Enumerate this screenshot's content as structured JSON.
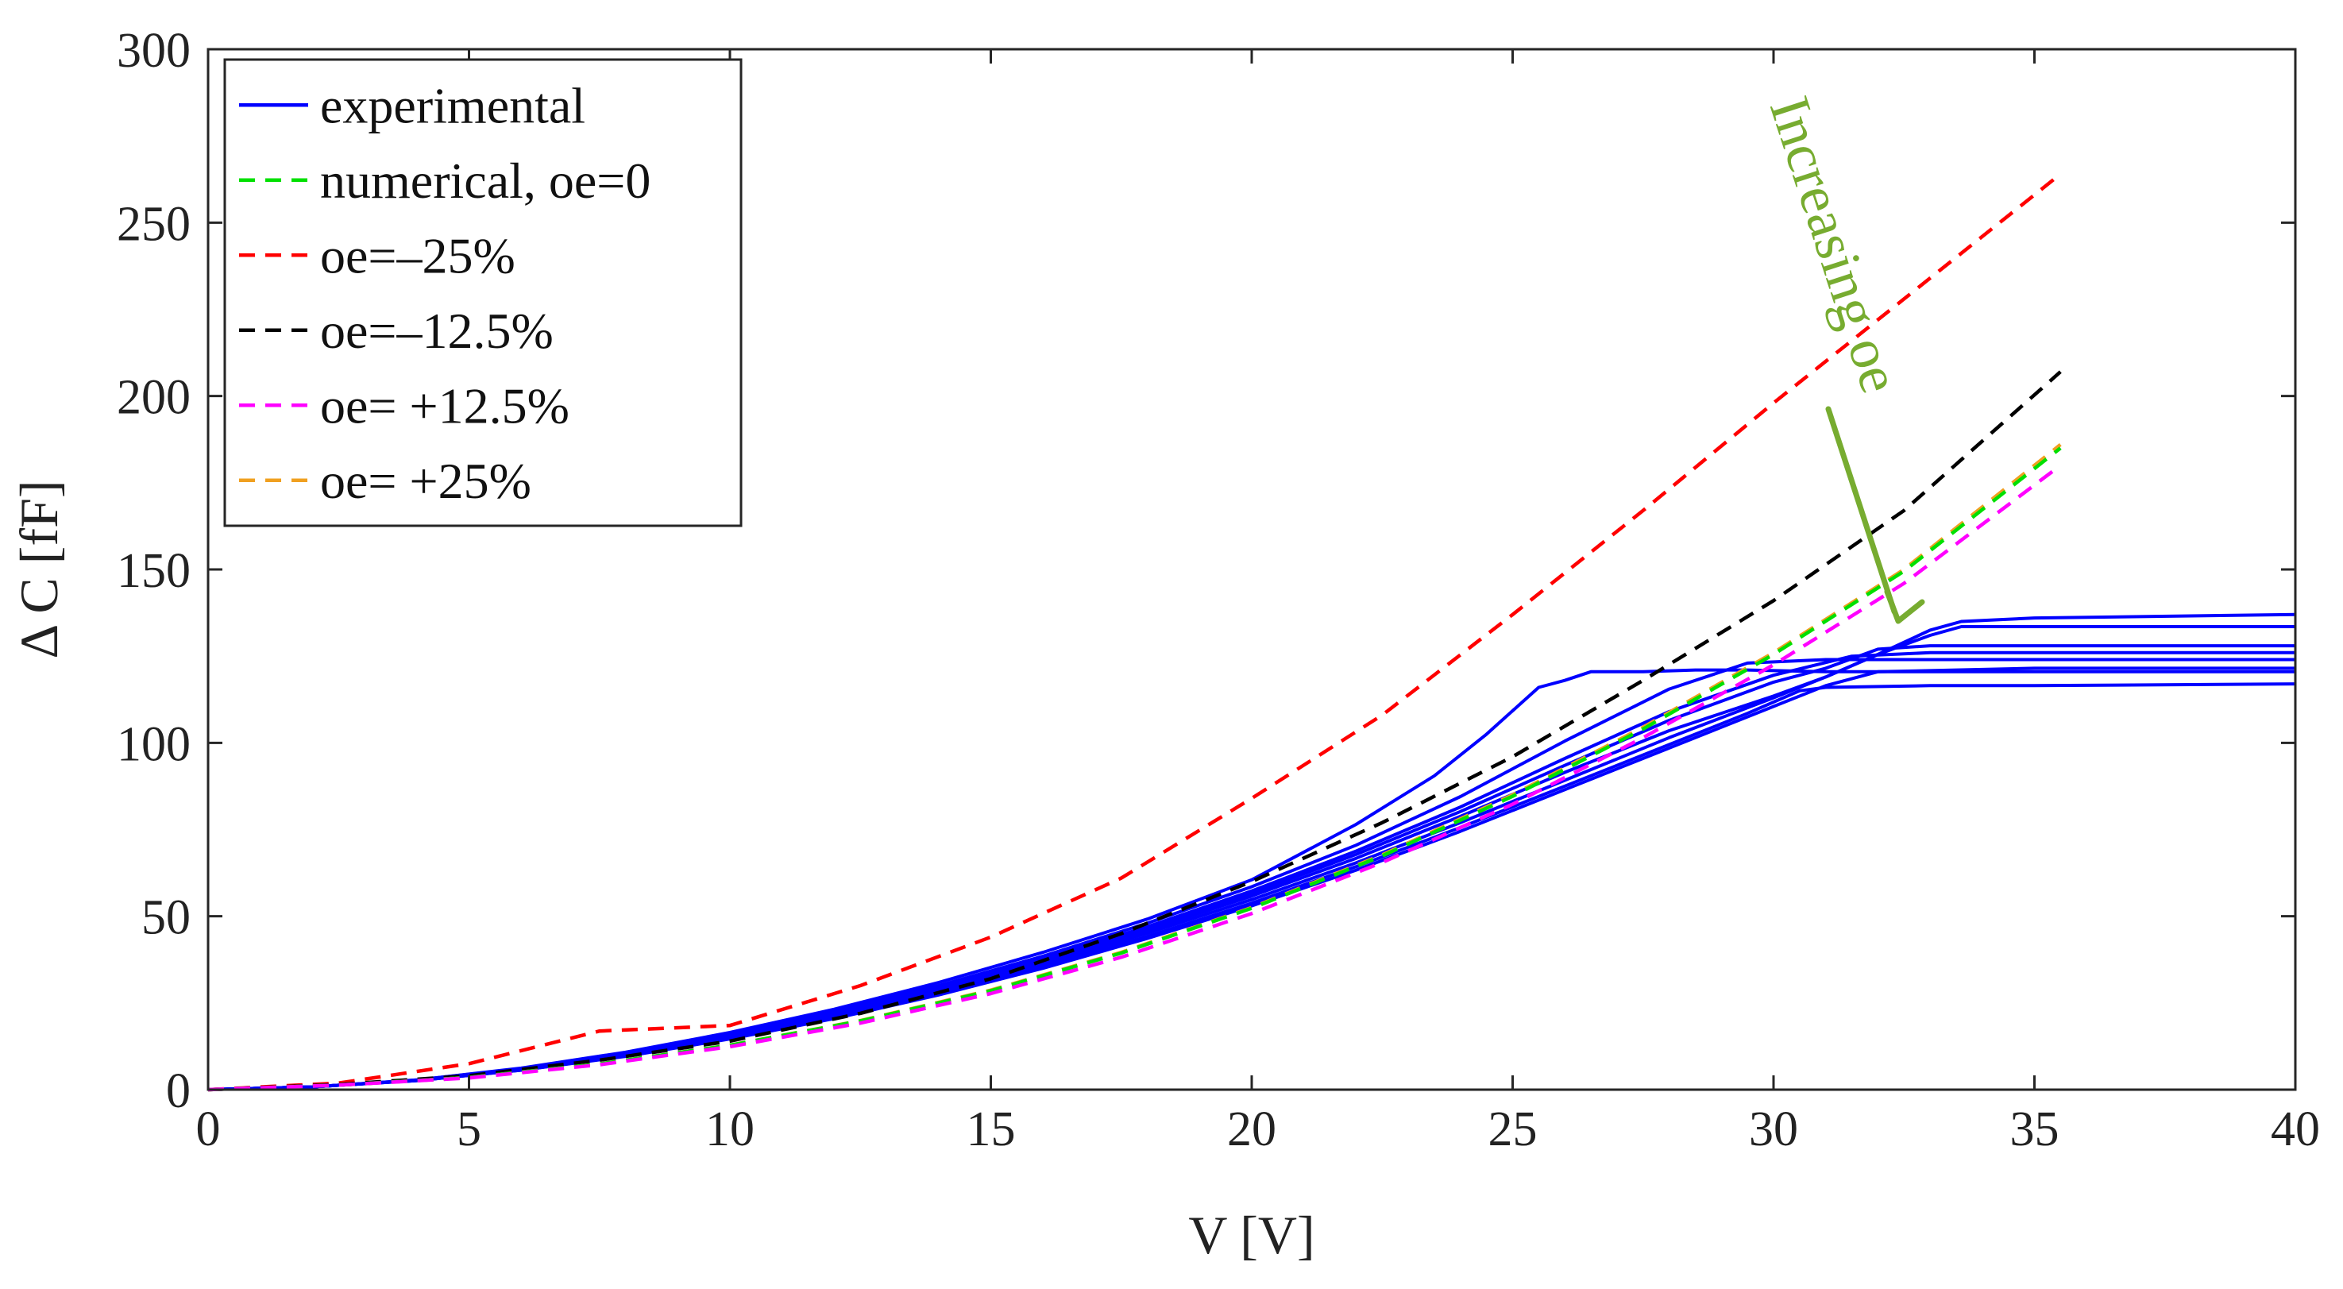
{
  "chart_data": {
    "type": "line",
    "title": "",
    "xlabel": "V [V]",
    "ylabel": "Δ C [fF]",
    "xlim": [
      0,
      40
    ],
    "ylim": [
      0,
      300
    ],
    "xticks": [
      0,
      5,
      10,
      15,
      20,
      25,
      30,
      35,
      40
    ],
    "yticks": [
      0,
      50,
      100,
      150,
      200,
      250,
      300
    ],
    "grid": false,
    "legend_position": "top-left",
    "annotation": {
      "text": "Increasing oe",
      "color": "#77ac30"
    },
    "series": [
      {
        "name": "experimental",
        "color": "#0000ff",
        "style": "solid",
        "legend": true,
        "x": [
          0,
          2,
          4,
          6,
          8,
          10,
          12,
          14,
          16,
          18,
          20,
          22,
          23.5,
          24.5,
          25.5,
          26,
          26.5,
          27.5,
          28.5,
          29.5,
          31,
          33,
          35,
          37,
          40
        ],
        "y": [
          0,
          0.8,
          2.8,
          6.2,
          10.8,
          16.5,
          23.2,
          30.9,
          39.6,
          49.2,
          60.5,
          76.5,
          90.5,
          102.5,
          116,
          118,
          120.5,
          120.5,
          121,
          121,
          120.5,
          120.5,
          120.5,
          120.5,
          120.5
        ]
      },
      {
        "name": "experimental",
        "color": "#0000ff",
        "style": "solid",
        "legend": false,
        "x": [
          0,
          2,
          4,
          6,
          8,
          10,
          12,
          14,
          16,
          18,
          20,
          22,
          24,
          26,
          28,
          29.5,
          31,
          33,
          35,
          40
        ],
        "y": [
          0,
          0.8,
          2.8,
          6.1,
          10.6,
          16,
          22.6,
          30,
          38.5,
          48,
          58.5,
          70.5,
          84.5,
          100.5,
          115.5,
          123,
          124,
          124,
          124,
          124
        ]
      },
      {
        "name": "experimental",
        "color": "#0000ff",
        "style": "solid",
        "legend": false,
        "x": [
          0,
          2,
          4,
          6,
          8,
          10,
          12,
          14,
          16,
          18,
          20,
          22,
          24,
          26,
          28,
          30,
          31.5,
          33,
          35,
          40
        ],
        "y": [
          0,
          0.8,
          2.7,
          6,
          10.4,
          15.8,
          22.2,
          29.5,
          37.8,
          47,
          57.3,
          68.8,
          81.5,
          95.5,
          109,
          119.5,
          125,
          126,
          126,
          126
        ]
      },
      {
        "name": "experimental",
        "color": "#0000ff",
        "style": "solid",
        "legend": false,
        "x": [
          0,
          2,
          4,
          6,
          8,
          10,
          12,
          14,
          16,
          18,
          20,
          22,
          24,
          26,
          28,
          30,
          31,
          32,
          33,
          35,
          40
        ],
        "y": [
          0,
          0.8,
          2.7,
          5.9,
          10.3,
          15.6,
          22,
          29.2,
          37.4,
          46.5,
          56.6,
          67.8,
          80.2,
          93.5,
          106.5,
          117.5,
          121.5,
          127,
          128,
          128,
          128
        ]
      },
      {
        "name": "experimental",
        "color": "#0000ff",
        "style": "solid",
        "legend": false,
        "x": [
          0,
          2,
          4,
          6,
          8,
          10,
          12,
          14,
          16,
          18,
          20,
          22,
          24,
          26,
          28,
          30,
          31,
          32,
          33,
          33.6,
          35,
          40
        ],
        "y": [
          0,
          0.8,
          2.7,
          5.8,
          10.1,
          15.4,
          21.7,
          28.8,
          36.9,
          45.9,
          55.8,
          66.7,
          78.8,
          91.5,
          103.5,
          113.5,
          119,
          125.5,
          131,
          133.5,
          133.5,
          133.5
        ]
      },
      {
        "name": "experimental",
        "color": "#0000ff",
        "style": "solid",
        "legend": false,
        "x": [
          0,
          2,
          4,
          6,
          8,
          10,
          12,
          14,
          16,
          18,
          20,
          22,
          24,
          26,
          28,
          30,
          31,
          32,
          33,
          33.6,
          35,
          40
        ],
        "y": [
          0,
          0.8,
          2.6,
          5.7,
          9.9,
          15.1,
          21.3,
          28.3,
          36.3,
          45.1,
          54.8,
          65.4,
          77,
          89.2,
          101.5,
          113,
          119,
          125.5,
          132.5,
          135,
          136,
          137
        ]
      },
      {
        "name": "experimental",
        "color": "#0000ff",
        "style": "solid",
        "legend": false,
        "x": [
          0,
          2,
          4,
          6,
          8,
          10,
          12,
          14,
          16,
          18,
          20,
          22,
          24,
          26,
          28,
          29.5,
          30.5,
          31,
          33,
          35,
          40
        ],
        "y": [
          0,
          0.8,
          2.6,
          5.6,
          9.7,
          14.8,
          20.8,
          27.7,
          35.5,
          44.2,
          53.8,
          64.3,
          75.6,
          87.5,
          99.5,
          108.5,
          115,
          116,
          116.5,
          116.5,
          117
        ]
      },
      {
        "name": "experimental",
        "color": "#0000ff",
        "style": "solid",
        "legend": false,
        "x": [
          0,
          2,
          4,
          6,
          8,
          10,
          12,
          14,
          16,
          18,
          20,
          22,
          24,
          26,
          28,
          30,
          31,
          32,
          35,
          40
        ],
        "y": [
          0,
          0.8,
          2.6,
          5.6,
          9.6,
          14.6,
          20.5,
          27.3,
          35,
          43.6,
          53,
          63.3,
          74.5,
          86.5,
          98.5,
          110.5,
          116.5,
          120.5,
          121.5,
          121.5
        ]
      },
      {
        "name": "oe=–25%",
        "color": "#ff0000",
        "style": "dashed",
        "legend": true,
        "x": [
          0,
          2.5,
          5,
          7.5,
          10,
          12.5,
          15,
          17.5,
          20,
          22.5,
          25,
          27.5,
          30,
          32.5,
          35.5
        ],
        "y": [
          0,
          1.9,
          7.5,
          16.9,
          18.5,
          30,
          44,
          61,
          84,
          108,
          137,
          167,
          198,
          228,
          264
        ]
      },
      {
        "name": "oe=–12.5%",
        "color": "#000000",
        "style": "dashed",
        "legend": true,
        "x": [
          0,
          2.5,
          5,
          7.5,
          10,
          12.5,
          15,
          17.5,
          20,
          22.5,
          25,
          27.5,
          30,
          32.5,
          35.5
        ],
        "y": [
          0,
          1.5,
          4,
          8.5,
          14,
          22,
          32,
          45,
          60,
          77,
          96,
          118,
          141,
          167,
          207
        ]
      },
      {
        "name": "oe= +25%",
        "color": "#f0a020",
        "style": "dashed",
        "legend": true,
        "x": [
          0,
          2.5,
          5,
          7.5,
          10,
          12.5,
          15,
          17.5,
          20,
          22.5,
          25,
          27.5,
          30,
          32.5,
          35.5
        ],
        "y": [
          0,
          1.3,
          3.5,
          7.4,
          12.8,
          19.9,
          28.7,
          39.6,
          52.5,
          67.7,
          85,
          104.5,
          126,
          150,
          186
        ]
      },
      {
        "name": "numerical, oe=0",
        "color": "#00e000",
        "style": "dashed",
        "legend": true,
        "x": [
          0,
          2.5,
          5,
          7.5,
          10,
          12.5,
          15,
          17.5,
          20,
          22.5,
          25,
          27.5,
          30,
          32.5,
          35.5
        ],
        "y": [
          0,
          1.3,
          3.5,
          7.4,
          12.8,
          19.8,
          28.5,
          39.4,
          52.3,
          67.4,
          84.6,
          104,
          125.5,
          149.5,
          185
        ]
      },
      {
        "name": "oe= +12.5%",
        "color": "#ff00ff",
        "style": "dashed",
        "legend": true,
        "x": [
          0,
          2.5,
          5,
          7.5,
          10,
          12.5,
          15,
          17.5,
          20,
          22.5,
          25,
          27.5,
          30,
          32.5,
          35.5
        ],
        "y": [
          0,
          1.3,
          3.4,
          7.2,
          12.4,
          19.2,
          27.7,
          38.2,
          50.8,
          65.5,
          82.3,
          101.5,
          122.5,
          146,
          180
        ]
      }
    ],
    "legend_order": [
      "experimental",
      "numerical, oe=0",
      "oe=–25%",
      "oe=–12.5%",
      "oe= +12.5%",
      "oe= +25%"
    ]
  }
}
